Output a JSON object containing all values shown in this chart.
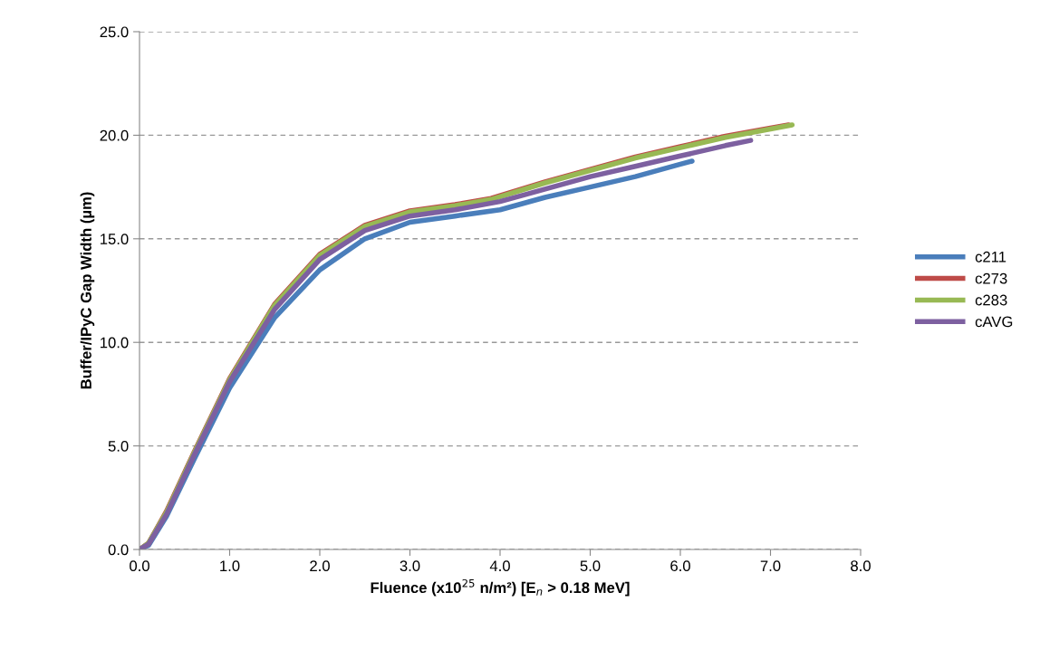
{
  "chart_data": {
    "type": "line",
    "xlabel": "Fluence (x10$^{25}$ n/m²) [E$_{n}$ > 0.18 MeV]",
    "ylabel": "Buffer/IPyC Gap Width (µm)",
    "xlim": [
      0,
      8
    ],
    "xticks": [
      {
        "value": 0,
        "label": "0.0"
      },
      {
        "value": 1,
        "label": "1.0"
      },
      {
        "value": 2,
        "label": "2.0"
      },
      {
        "value": 3,
        "label": "3.0"
      },
      {
        "value": 4,
        "label": "4.0"
      },
      {
        "value": 5,
        "label": "5.0"
      },
      {
        "value": 6,
        "label": "6.0"
      },
      {
        "value": 7,
        "label": "7.0"
      },
      {
        "value": 8,
        "label": "8.0"
      }
    ],
    "ylim": [
      0,
      25
    ],
    "yticks": [
      {
        "value": 0,
        "label": "0.0"
      },
      {
        "value": 5,
        "label": "5.0"
      },
      {
        "value": 10,
        "label": "10.0"
      },
      {
        "value": 15,
        "label": "15.0"
      },
      {
        "value": 20,
        "label": "20.0"
      },
      {
        "value": 25,
        "label": "25.0"
      }
    ],
    "grid": "y",
    "legend": "right",
    "marker": "none",
    "line_style": "solid",
    "series": [
      {
        "name": "c211",
        "color": "#4a7ebb",
        "x": [
          0,
          0.1,
          0.3,
          0.6,
          1.0,
          1.5,
          2.0,
          2.5,
          3.0,
          3.5,
          4.0,
          4.5,
          5.0,
          5.5,
          6.0,
          6.13
        ],
        "values": [
          0,
          0.2,
          1.6,
          4.3,
          7.8,
          11.2,
          13.5,
          15.0,
          15.8,
          16.1,
          16.4,
          17.0,
          17.5,
          18.0,
          18.6,
          18.75
        ]
      },
      {
        "name": "c273",
        "color": "#be4b48",
        "x": [
          0,
          0.1,
          0.3,
          0.6,
          1.0,
          1.5,
          2.0,
          2.5,
          3.0,
          3.5,
          3.9,
          4.5,
          5.0,
          5.5,
          6.0,
          6.5,
          7.0,
          7.2
        ],
        "values": [
          0,
          0.3,
          1.85,
          4.65,
          8.25,
          11.85,
          14.25,
          15.65,
          16.35,
          16.65,
          16.95,
          17.75,
          18.35,
          18.95,
          19.45,
          19.95,
          20.35,
          20.5
        ]
      },
      {
        "name": "c283",
        "color": "#98b954",
        "x": [
          0,
          0.1,
          0.3,
          0.6,
          1.0,
          1.5,
          2.0,
          2.5,
          3.0,
          3.5,
          3.9,
          4.5,
          5.0,
          5.5,
          6.0,
          6.5,
          7.0,
          7.24
        ],
        "values": [
          0,
          0.3,
          1.8,
          4.6,
          8.2,
          11.8,
          14.2,
          15.6,
          16.3,
          16.6,
          16.9,
          17.7,
          18.3,
          18.9,
          19.4,
          19.9,
          20.3,
          20.5
        ]
      },
      {
        "name": "cAVG",
        "color": "#7d60a0",
        "x": [
          0,
          0.1,
          0.3,
          0.6,
          1.0,
          1.5,
          2.0,
          2.5,
          3.0,
          3.5,
          4.0,
          4.5,
          5.0,
          5.5,
          6.0,
          6.5,
          6.78
        ],
        "values": [
          0,
          0.25,
          1.7,
          4.5,
          8.1,
          11.6,
          14.0,
          15.4,
          16.1,
          16.4,
          16.8,
          17.4,
          18.0,
          18.5,
          19.0,
          19.5,
          19.75
        ]
      }
    ]
  }
}
